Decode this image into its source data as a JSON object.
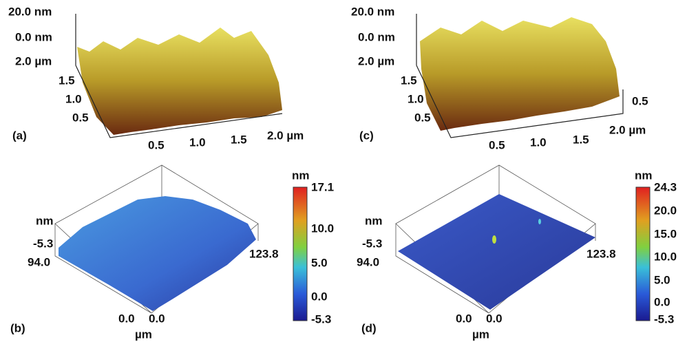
{
  "panels": [
    {
      "label": "(a)",
      "z_labels": [
        "20.0 nm",
        "0.0 nm"
      ],
      "y_labels": [
        "2.0 µm",
        "1.5",
        "1.0",
        "0.5"
      ],
      "x_labels": [
        "0.5",
        "1.0",
        "1.5",
        "2.0 µm"
      ]
    },
    {
      "label": "(b)",
      "z_unit": "nm",
      "z_label": "-5.3",
      "y_label": "94.0",
      "x_label": "123.8",
      "origin_labels": [
        "0.0",
        "0.0"
      ],
      "unit": "µm",
      "colorbar": {
        "title": "nm",
        "ticks": [
          "17.1",
          "10.0",
          "5.0",
          "0.0",
          "-5.3"
        ]
      }
    },
    {
      "label": "(c)",
      "z_labels": [
        "20.0 nm",
        "0.0 nm"
      ],
      "y_labels": [
        "2.0 µm",
        "1.5",
        "1.0",
        "0.5"
      ],
      "x_labels": [
        "0.5",
        "1.0",
        "1.5",
        "2.0 µm"
      ],
      "right_label": "0.5"
    },
    {
      "label": "(d)",
      "z_unit": "nm",
      "z_label": "-5.3",
      "y_label": "94.0",
      "x_label": "123.8",
      "origin_labels": [
        "0.0",
        "0.0"
      ],
      "unit": "µm",
      "colorbar": {
        "title": "nm",
        "ticks": [
          "24.3",
          "20.0",
          "15.0",
          "10.0",
          "5.0",
          "0.0",
          "-5.3"
        ]
      }
    }
  ]
}
